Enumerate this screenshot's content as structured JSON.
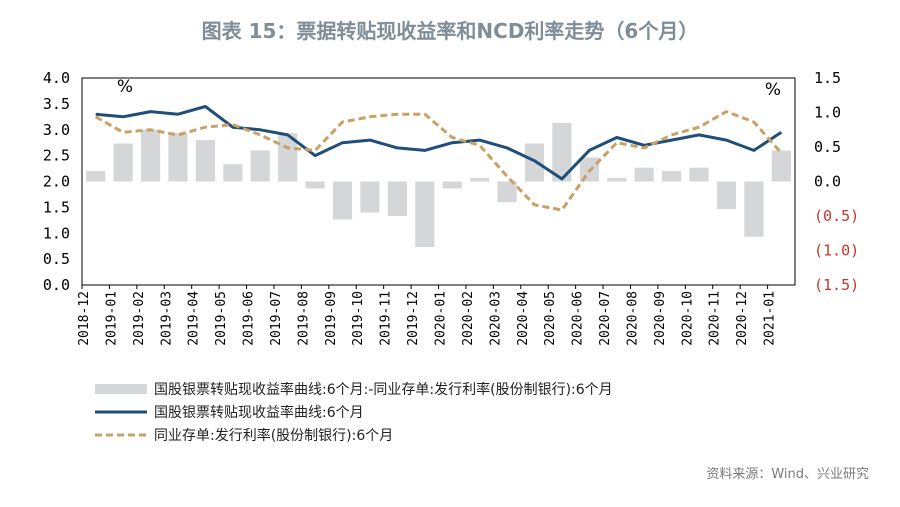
{
  "chart_data": {
    "type": "line",
    "title": "图表 15：票据转贴现收益率和NCD利率走势（6个月）",
    "source": "资料来源：Wind、兴业研究",
    "unit_left": "%",
    "unit_right": "%",
    "left_axis": {
      "ylim": [
        0.0,
        4.0
      ],
      "ticks": [
        "4.0",
        "3.5",
        "3.0",
        "2.5",
        "2.0",
        "1.5",
        "1.0",
        "0.5",
        "0.0"
      ]
    },
    "right_axis": {
      "ylim": [
        -1.5,
        1.5
      ],
      "ticks": [
        "1.5",
        "1.0",
        "0.5",
        "0.0",
        "(0.5)",
        "(1.0)",
        "(1.5)"
      ]
    },
    "categories": [
      "2018-12",
      "2019-01",
      "2019-02",
      "2019-03",
      "2019-04",
      "2019-05",
      "2019-06",
      "2019-07",
      "2019-08",
      "2019-09",
      "2019-10",
      "2019-11",
      "2019-12",
      "2020-01",
      "2020-02",
      "2020-03",
      "2020-04",
      "2020-05",
      "2020-06",
      "2020-07",
      "2020-08",
      "2020-09",
      "2020-10",
      "2020-11",
      "2020-12",
      "2021-01"
    ],
    "series": [
      {
        "name": "国股银票转贴现收益率曲线:6个月:-同业存单:发行利率(股份制银行):6个月",
        "kind": "bar",
        "axis": "right",
        "color": "#d4d6d8",
        "values": [
          0.15,
          0.55,
          0.75,
          0.7,
          0.6,
          0.25,
          0.45,
          0.7,
          -0.1,
          -0.55,
          -0.45,
          -0.5,
          -0.95,
          -0.1,
          0.05,
          -0.3,
          0.55,
          0.85,
          0.35,
          0.05,
          0.2,
          0.15,
          0.2,
          -0.4,
          -0.8,
          0.45
        ]
      },
      {
        "name": "国股银票转贴现收益率曲线:6个月",
        "kind": "line",
        "axis": "left",
        "color": "#1f4e79",
        "values": [
          3.3,
          3.25,
          3.35,
          3.3,
          3.45,
          3.05,
          3.0,
          2.9,
          2.5,
          2.75,
          2.8,
          2.65,
          2.6,
          2.75,
          2.8,
          2.65,
          2.4,
          2.05,
          2.6,
          2.85,
          2.7,
          2.8,
          2.9,
          2.8,
          2.6,
          2.95
        ]
      },
      {
        "name": "同业存单:发行利率(股份制银行):6个月",
        "kind": "line",
        "axis": "left",
        "color": "#c8a165",
        "dash": "dashed",
        "values": [
          3.25,
          2.95,
          3.0,
          2.9,
          3.05,
          3.1,
          2.9,
          2.65,
          2.6,
          3.15,
          3.25,
          3.3,
          3.3,
          2.85,
          2.7,
          2.1,
          1.55,
          1.45,
          2.2,
          2.75,
          2.65,
          2.9,
          3.05,
          3.35,
          3.15,
          2.55
        ]
      }
    ]
  }
}
